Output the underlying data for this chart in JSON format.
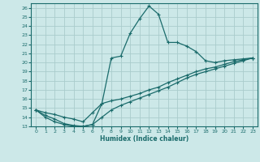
{
  "xlabel": "Humidex (Indice chaleur)",
  "bg_color": "#cce8e8",
  "grid_color": "#aacccc",
  "line_color": "#1a6b6b",
  "xlim": [
    -0.5,
    23.5
  ],
  "ylim": [
    13,
    26.5
  ],
  "yticks": [
    13,
    14,
    15,
    16,
    17,
    18,
    19,
    20,
    21,
    22,
    23,
    24,
    25,
    26
  ],
  "xticks": [
    0,
    1,
    2,
    3,
    4,
    5,
    6,
    7,
    8,
    9,
    10,
    11,
    12,
    13,
    14,
    15,
    16,
    17,
    18,
    19,
    20,
    21,
    22,
    23
  ],
  "curve1_x": [
    0,
    1,
    2,
    3,
    4,
    5,
    6,
    7,
    8,
    9,
    10,
    11,
    12,
    13,
    14,
    15,
    16,
    17,
    18,
    19,
    20,
    21,
    22,
    23
  ],
  "curve1_y": [
    14.8,
    14.0,
    13.5,
    13.2,
    13.0,
    13.0,
    13.2,
    15.5,
    20.5,
    20.7,
    23.2,
    24.8,
    26.2,
    25.3,
    22.2,
    22.2,
    21.8,
    21.2,
    20.2,
    20.0,
    20.2,
    20.3,
    20.4,
    20.5
  ],
  "curve2_x": [
    0,
    1,
    2,
    3,
    4,
    5,
    6,
    7,
    8,
    9,
    10,
    11,
    12,
    13,
    14,
    15,
    16,
    17,
    18,
    19,
    20,
    21,
    22,
    23
  ],
  "curve2_y": [
    14.8,
    14.5,
    14.3,
    14.0,
    13.8,
    13.5,
    14.5,
    15.5,
    15.8,
    16.0,
    16.3,
    16.6,
    17.0,
    17.3,
    17.8,
    18.2,
    18.6,
    19.0,
    19.3,
    19.5,
    19.8,
    20.1,
    20.3,
    20.5
  ],
  "curve3_x": [
    0,
    1,
    2,
    3,
    4,
    5,
    6,
    7,
    8,
    9,
    10,
    11,
    12,
    13,
    14,
    15,
    16,
    17,
    18,
    19,
    20,
    21,
    22,
    23
  ],
  "curve3_y": [
    14.8,
    14.2,
    13.8,
    13.3,
    13.1,
    13.0,
    13.2,
    14.0,
    14.8,
    15.3,
    15.7,
    16.1,
    16.5,
    16.9,
    17.3,
    17.8,
    18.3,
    18.7,
    19.0,
    19.3,
    19.6,
    19.9,
    20.2,
    20.5
  ]
}
